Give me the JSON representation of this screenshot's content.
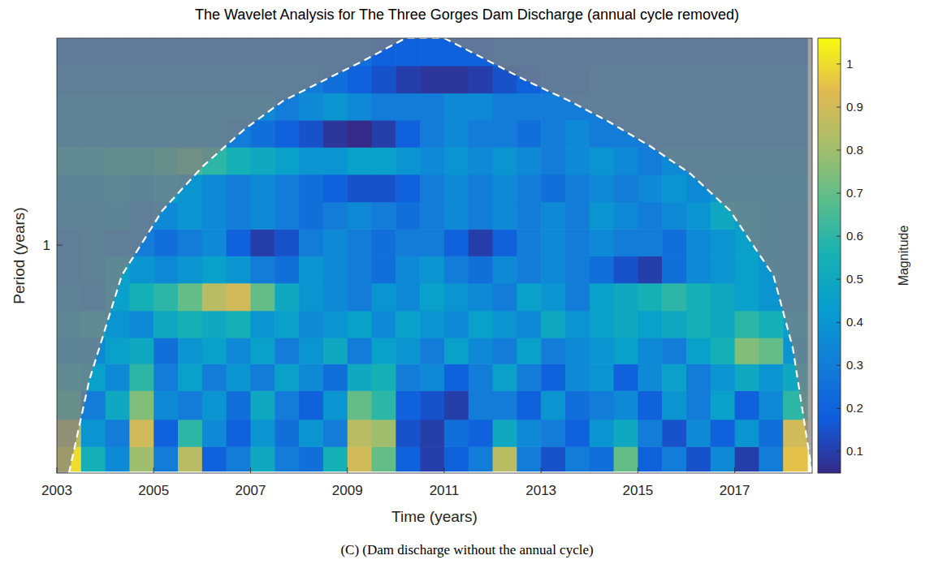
{
  "chart_data": {
    "type": "heatmap",
    "title": "The Wavelet Analysis for The Three Gorges Dam Discharge (annual cycle removed)",
    "x_label": "Time (years)",
    "y_label": "Period (years)",
    "caption": "(C) (Dam discharge without the annual cycle)",
    "log": "y",
    "xlim": [
      2003,
      2018.6
    ],
    "ylim": [
      0.17,
      5.0
    ],
    "xticks": [
      2003,
      2005,
      2007,
      2009,
      2011,
      2013,
      2015,
      2017
    ],
    "yticks": [
      1
    ],
    "x": [
      2003.25,
      2003.75,
      2004.25,
      2004.75,
      2005.25,
      2005.75,
      2006.25,
      2006.75,
      2007.25,
      2007.75,
      2008.25,
      2008.75,
      2009.25,
      2009.75,
      2010.25,
      2010.75,
      2011.25,
      2011.75,
      2012.25,
      2012.75,
      2013.25,
      2013.75,
      2014.25,
      2014.75,
      2015.25,
      2015.75,
      2016.25,
      2016.75,
      2017.25,
      2017.75,
      2018.25
    ],
    "y": [
      0.19,
      0.23,
      0.29,
      0.36,
      0.44,
      0.54,
      0.67,
      0.83,
      1.02,
      1.26,
      1.56,
      1.93,
      2.38,
      2.94,
      3.63,
      4.49
    ],
    "values": [
      [
        1.0,
        0.55,
        0.35,
        0.8,
        0.3,
        0.85,
        0.2,
        0.3,
        0.5,
        0.3,
        0.25,
        0.55,
        0.9,
        0.7,
        0.2,
        0.1,
        0.2,
        0.3,
        0.85,
        0.3,
        0.15,
        0.3,
        0.25,
        0.7,
        0.2,
        0.3,
        0.15,
        0.35,
        0.1,
        0.3,
        0.95
      ],
      [
        0.85,
        0.4,
        0.3,
        0.9,
        0.2,
        0.6,
        0.35,
        0.2,
        0.4,
        0.25,
        0.4,
        0.3,
        0.85,
        0.8,
        0.15,
        0.1,
        0.25,
        0.2,
        0.5,
        0.35,
        0.3,
        0.2,
        0.4,
        0.5,
        0.3,
        0.15,
        0.35,
        0.2,
        0.4,
        0.25,
        0.9
      ],
      [
        0.6,
        0.3,
        0.5,
        0.75,
        0.35,
        0.3,
        0.4,
        0.25,
        0.5,
        0.3,
        0.2,
        0.4,
        0.7,
        0.6,
        0.2,
        0.15,
        0.1,
        0.3,
        0.3,
        0.2,
        0.4,
        0.25,
        0.3,
        0.35,
        0.2,
        0.4,
        0.3,
        0.45,
        0.2,
        0.35,
        0.6
      ],
      [
        0.5,
        0.45,
        0.35,
        0.6,
        0.3,
        0.45,
        0.3,
        0.4,
        0.3,
        0.45,
        0.35,
        0.25,
        0.5,
        0.55,
        0.3,
        0.35,
        0.2,
        0.3,
        0.45,
        0.3,
        0.2,
        0.35,
        0.4,
        0.2,
        0.35,
        0.45,
        0.3,
        0.4,
        0.5,
        0.4,
        0.5
      ],
      [
        0.4,
        0.35,
        0.45,
        0.5,
        0.25,
        0.4,
        0.45,
        0.35,
        0.45,
        0.3,
        0.4,
        0.5,
        0.3,
        0.45,
        0.4,
        0.3,
        0.45,
        0.35,
        0.3,
        0.45,
        0.3,
        0.35,
        0.4,
        0.45,
        0.35,
        0.3,
        0.45,
        0.55,
        0.75,
        0.7,
        0.4
      ],
      [
        0.45,
        0.5,
        0.4,
        0.35,
        0.5,
        0.55,
        0.5,
        0.55,
        0.4,
        0.45,
        0.35,
        0.4,
        0.45,
        0.35,
        0.45,
        0.4,
        0.35,
        0.45,
        0.4,
        0.35,
        0.5,
        0.4,
        0.45,
        0.5,
        0.45,
        0.5,
        0.55,
        0.5,
        0.6,
        0.55,
        0.45
      ],
      [
        0.35,
        0.3,
        0.45,
        0.55,
        0.6,
        0.7,
        0.85,
        0.9,
        0.7,
        0.5,
        0.4,
        0.35,
        0.3,
        0.4,
        0.35,
        0.45,
        0.4,
        0.35,
        0.3,
        0.45,
        0.4,
        0.3,
        0.45,
        0.5,
        0.55,
        0.6,
        0.55,
        0.5,
        0.45,
        0.4,
        0.35
      ],
      [
        0.3,
        0.35,
        0.45,
        0.4,
        0.35,
        0.4,
        0.45,
        0.4,
        0.3,
        0.25,
        0.4,
        0.35,
        0.3,
        0.25,
        0.35,
        0.4,
        0.3,
        0.25,
        0.35,
        0.3,
        0.35,
        0.3,
        0.25,
        0.15,
        0.1,
        0.25,
        0.35,
        0.4,
        0.45,
        0.4,
        0.35
      ],
      [
        0.3,
        0.35,
        0.3,
        0.3,
        0.25,
        0.3,
        0.35,
        0.2,
        0.1,
        0.15,
        0.3,
        0.35,
        0.3,
        0.25,
        0.3,
        0.3,
        0.2,
        0.1,
        0.2,
        0.3,
        0.35,
        0.3,
        0.35,
        0.3,
        0.3,
        0.25,
        0.35,
        0.4,
        0.45,
        0.4,
        0.35
      ],
      [
        0.35,
        0.35,
        0.4,
        0.3,
        0.35,
        0.4,
        0.35,
        0.3,
        0.35,
        0.3,
        0.25,
        0.3,
        0.35,
        0.3,
        0.25,
        0.3,
        0.35,
        0.3,
        0.35,
        0.3,
        0.35,
        0.3,
        0.4,
        0.35,
        0.3,
        0.35,
        0.4,
        0.5,
        0.45,
        0.4,
        0.35
      ],
      [
        0.4,
        0.4,
        0.45,
        0.4,
        0.45,
        0.4,
        0.35,
        0.3,
        0.35,
        0.3,
        0.25,
        0.2,
        0.15,
        0.15,
        0.2,
        0.3,
        0.35,
        0.3,
        0.35,
        0.3,
        0.25,
        0.3,
        0.35,
        0.3,
        0.35,
        0.4,
        0.35,
        0.4,
        0.4,
        0.4,
        0.4
      ],
      [
        0.5,
        0.5,
        0.55,
        0.55,
        0.6,
        0.65,
        0.6,
        0.55,
        0.5,
        0.45,
        0.4,
        0.4,
        0.45,
        0.45,
        0.4,
        0.35,
        0.4,
        0.35,
        0.4,
        0.35,
        0.3,
        0.35,
        0.4,
        0.35,
        0.3,
        0.35,
        0.35,
        0.35,
        0.35,
        0.35,
        0.35
      ],
      [
        0.35,
        0.35,
        0.35,
        0.35,
        0.35,
        0.35,
        0.35,
        0.3,
        0.25,
        0.2,
        0.15,
        0.08,
        0.05,
        0.1,
        0.2,
        0.3,
        0.35,
        0.3,
        0.3,
        0.25,
        0.3,
        0.35,
        0.3,
        0.3,
        0.3,
        0.3,
        0.3,
        0.3,
        0.3,
        0.3,
        0.3
      ],
      [
        0.35,
        0.35,
        0.35,
        0.35,
        0.35,
        0.35,
        0.35,
        0.35,
        0.35,
        0.3,
        0.35,
        0.4,
        0.35,
        0.3,
        0.3,
        0.3,
        0.35,
        0.35,
        0.3,
        0.3,
        0.3,
        0.3,
        0.3,
        0.3,
        0.3,
        0.3,
        0.3,
        0.3,
        0.3,
        0.3,
        0.3
      ],
      [
        0.3,
        0.3,
        0.3,
        0.3,
        0.3,
        0.3,
        0.3,
        0.3,
        0.3,
        0.3,
        0.3,
        0.25,
        0.2,
        0.15,
        0.1,
        0.08,
        0.08,
        0.1,
        0.15,
        0.2,
        0.25,
        0.25,
        0.3,
        0.3,
        0.3,
        0.3,
        0.3,
        0.3,
        0.3,
        0.3,
        0.3
      ],
      [
        0.25,
        0.25,
        0.25,
        0.25,
        0.25,
        0.25,
        0.25,
        0.25,
        0.25,
        0.25,
        0.25,
        0.25,
        0.25,
        0.2,
        0.2,
        0.2,
        0.2,
        0.2,
        0.25,
        0.25,
        0.25,
        0.25,
        0.25,
        0.25,
        0.25,
        0.25,
        0.25,
        0.25,
        0.25,
        0.25,
        0.25
      ]
    ],
    "coi": {
      "x": [
        2003.25,
        2003.67,
        2004.34,
        2005.18,
        2006.02,
        2006.86,
        2007.66,
        2008.5,
        2009.34,
        2010.2,
        2011.0,
        2011.9,
        2012.7,
        2013.6,
        2014.4,
        2015.25,
        2016.09,
        2016.9,
        2017.8,
        2018.2,
        2018.6
      ],
      "period": [
        0.17,
        0.35,
        0.79,
        1.31,
        1.85,
        2.45,
        3.06,
        3.59,
        4.2,
        5.0,
        5.0,
        4.2,
        3.59,
        3.06,
        2.61,
        2.16,
        1.74,
        1.31,
        0.79,
        0.45,
        0.17
      ]
    },
    "colorbar": {
      "label": "Magnitude",
      "range": [
        0.05,
        1.06
      ],
      "ticks": [
        0.1,
        0.2,
        0.3,
        0.4,
        0.5,
        0.6,
        0.7,
        0.8,
        0.9,
        1
      ]
    }
  }
}
